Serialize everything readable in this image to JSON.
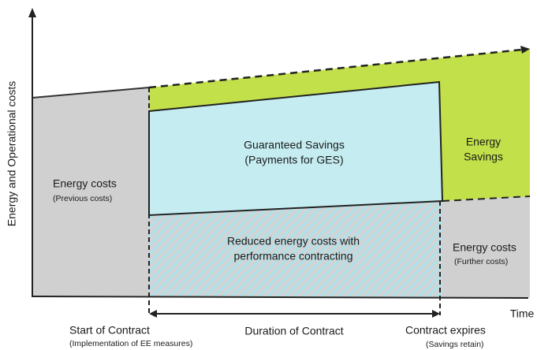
{
  "axes": {
    "y_label": "Energy and Operational costs",
    "x_label": "Time"
  },
  "regions": [
    {
      "title": "Energy costs",
      "note": "(Previous costs)"
    },
    {
      "title": "Guaranteed Savings",
      "note": "(Payments for GES)"
    },
    {
      "title": "Energy",
      "note": "Savings"
    },
    {
      "title": "Reduced energy costs with",
      "note": "performance contracting"
    },
    {
      "title": "Energy costs",
      "note": "(Further costs)"
    }
  ],
  "timeline": [
    {
      "title": "Start of Contract",
      "note": "(Implementation of EE measures)"
    },
    {
      "title": "Duration of Contract"
    },
    {
      "title": "Contract expires",
      "note": "(Savings retain)"
    }
  ]
}
